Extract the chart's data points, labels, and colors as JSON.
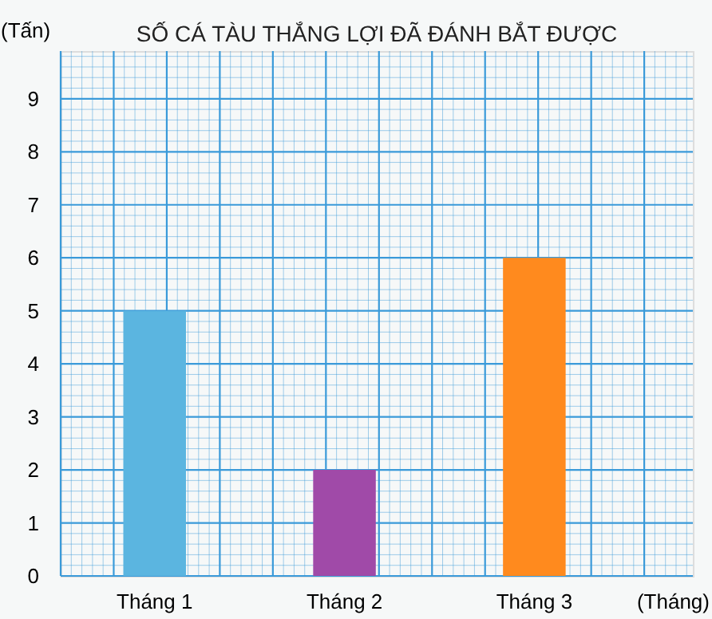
{
  "chart_data": {
    "type": "bar",
    "title": "SỐ CÁ TÀU THẮNG LỢI ĐÃ ĐÁNH BẮT ĐƯỢC",
    "xlabel": "(Tháng)",
    "ylabel": "(Tấn)",
    "categories": [
      "Tháng 1",
      "Tháng 2",
      "Tháng 3"
    ],
    "values": [
      5,
      2,
      6
    ],
    "colors": [
      "#5bb5e0",
      "#a04aa8",
      "#ff8a1e"
    ],
    "ylim": [
      0,
      9.9
    ],
    "yticks": [
      0,
      1,
      2,
      3,
      4,
      5,
      6,
      7,
      8,
      9
    ],
    "grid": true
  }
}
